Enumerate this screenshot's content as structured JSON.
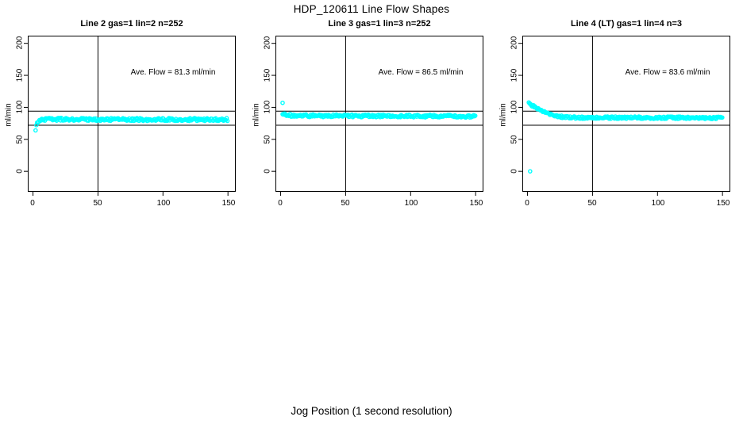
{
  "page": {
    "title": "HDP_120611  Line Flow Shapes",
    "xlabel": "Jog Position (1 second resolution)",
    "background": "#ffffff",
    "axis_color": "#000000"
  },
  "chart_data": [
    {
      "type": "scatter",
      "title": "Line 2 gas=1 lin=2 n=252",
      "n": 252,
      "ylabel": "ml/min",
      "annotation": "Ave. Flow =  81.3  ml/min",
      "ave_flow": 81.3,
      "x_ticks": [
        0,
        50,
        100,
        150
      ],
      "y_ticks": [
        0,
        50,
        100,
        150,
        200
      ],
      "xlim": [
        -4,
        156
      ],
      "ylim": [
        -32,
        212
      ],
      "grid": false,
      "ref_lines_y": [
        94,
        72
      ],
      "ref_line_x": 50,
      "point_color": "#00FFFF",
      "jitter": 2.2,
      "step": 0.6,
      "profile": [
        [
          2.6,
          71
        ],
        [
          3.2,
          75
        ],
        [
          4,
          78
        ],
        [
          5,
          80
        ],
        [
          7,
          81
        ],
        [
          12,
          81.5
        ],
        [
          60,
          81
        ],
        [
          150,
          81
        ]
      ],
      "outliers": [
        [
          2,
          64
        ]
      ]
    },
    {
      "type": "scatter",
      "title": "Line 3 gas=1 lin=3 n=252",
      "n": 252,
      "ylabel": "ml/min",
      "annotation": "Ave. Flow =  86.5  ml/min",
      "ave_flow": 86.5,
      "x_ticks": [
        0,
        50,
        100,
        150
      ],
      "y_ticks": [
        0,
        50,
        100,
        150,
        200
      ],
      "xlim": [
        -4,
        156
      ],
      "ylim": [
        -32,
        212
      ],
      "grid": false,
      "ref_lines_y": [
        94,
        72
      ],
      "ref_line_x": 50,
      "point_color": "#00FFFF",
      "jitter": 2.0,
      "step": 0.6,
      "profile": [
        [
          1.5,
          90
        ],
        [
          3,
          88.5
        ],
        [
          6,
          87.5
        ],
        [
          15,
          87
        ],
        [
          80,
          86.5
        ],
        [
          150,
          86
        ]
      ],
      "outliers": [
        [
          1.5,
          107
        ]
      ]
    },
    {
      "type": "scatter",
      "title": "Line 4 (LT) gas=1 lin=4 n=3",
      "n": 3,
      "ylabel": "ml/min",
      "annotation": "Ave. Flow =  83.6  ml/min",
      "ave_flow": 83.6,
      "x_ticks": [
        0,
        50,
        100,
        150
      ],
      "y_ticks": [
        0,
        50,
        100,
        150,
        200
      ],
      "xlim": [
        -4,
        156
      ],
      "ylim": [
        -32,
        212
      ],
      "grid": false,
      "ref_lines_y": [
        94,
        72
      ],
      "ref_line_x": 50,
      "point_color": "#00FFFF",
      "jitter": 1.8,
      "step": 0.6,
      "profile": [
        [
          1,
          107
        ],
        [
          2,
          105.5
        ],
        [
          3.5,
          103
        ],
        [
          5,
          101
        ],
        [
          7,
          98
        ],
        [
          9,
          96
        ],
        [
          12,
          93
        ],
        [
          15,
          90.5
        ],
        [
          18,
          88.5
        ],
        [
          22,
          86.5
        ],
        [
          27,
          85
        ],
        [
          33,
          84.3
        ],
        [
          40,
          84
        ],
        [
          100,
          83.8
        ],
        [
          150,
          83.5
        ]
      ],
      "outliers": [
        [
          2,
          0
        ]
      ]
    }
  ]
}
